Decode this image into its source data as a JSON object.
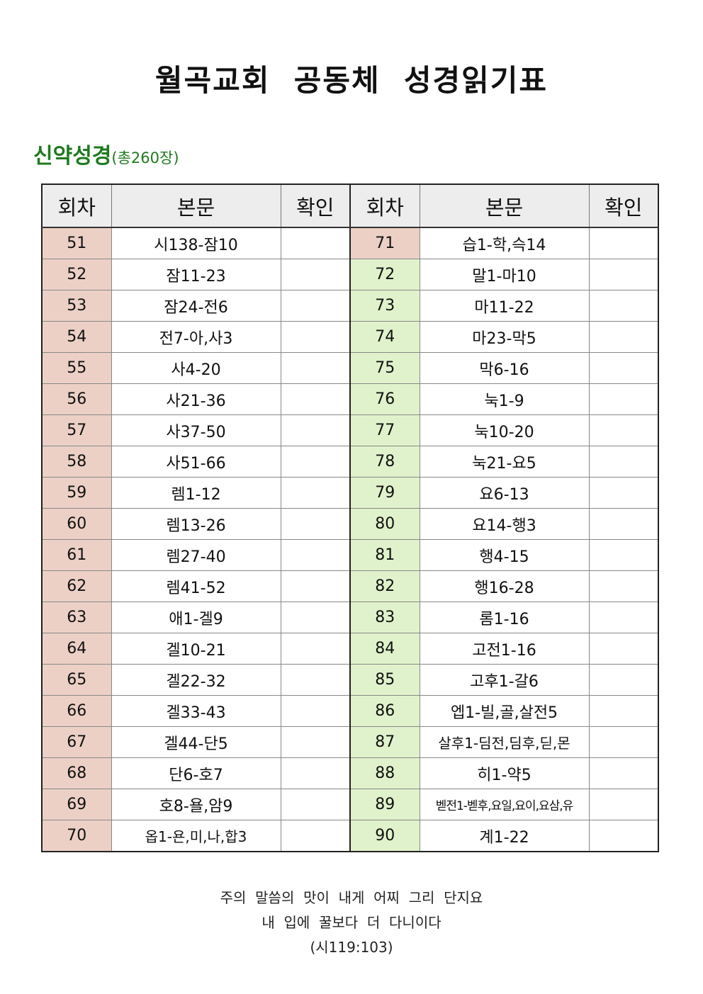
{
  "title": "월곡교회  공동체  성경읽기표",
  "section": {
    "main": "신약성경",
    "sub": "(총260장)"
  },
  "table": {
    "headers": [
      "회차",
      "본문",
      "확인",
      "회차",
      "본문",
      "확인"
    ],
    "rows": [
      {
        "n1": "51",
        "t1": "시138-잠10",
        "n2": "71",
        "t2": "습1-학,슥14"
      },
      {
        "n1": "52",
        "t1": "잠11-23",
        "n2": "72",
        "t2": "말1-마10"
      },
      {
        "n1": "53",
        "t1": "잠24-전6",
        "n2": "73",
        "t2": "마11-22"
      },
      {
        "n1": "54",
        "t1": "전7-아,사3",
        "n2": "74",
        "t2": "마23-막5"
      },
      {
        "n1": "55",
        "t1": "사4-20",
        "n2": "75",
        "t2": "막6-16"
      },
      {
        "n1": "56",
        "t1": "사21-36",
        "n2": "76",
        "t2": "눅1-9"
      },
      {
        "n1": "57",
        "t1": "사37-50",
        "n2": "77",
        "t2": "눅10-20"
      },
      {
        "n1": "58",
        "t1": "사51-66",
        "n2": "78",
        "t2": "눅21-요5"
      },
      {
        "n1": "59",
        "t1": "렘1-12",
        "n2": "79",
        "t2": "요6-13"
      },
      {
        "n1": "60",
        "t1": "렘13-26",
        "n2": "80",
        "t2": "요14-행3"
      },
      {
        "n1": "61",
        "t1": "렘27-40",
        "n2": "81",
        "t2": "행4-15"
      },
      {
        "n1": "62",
        "t1": "렘41-52",
        "n2": "82",
        "t2": "행16-28"
      },
      {
        "n1": "63",
        "t1": "애1-겔9",
        "n2": "83",
        "t2": "롬1-16"
      },
      {
        "n1": "64",
        "t1": "겔10-21",
        "n2": "84",
        "t2": "고전1-16"
      },
      {
        "n1": "65",
        "t1": "겔22-32",
        "n2": "85",
        "t2": "고후1-갈6"
      },
      {
        "n1": "66",
        "t1": "겔33-43",
        "n2": "86",
        "t2": "엡1-빌,골,살전5"
      },
      {
        "n1": "67",
        "t1": "겔44-단5",
        "n2": "87",
        "t2": "살후1-딤전,딤후,딛,몬"
      },
      {
        "n1": "68",
        "t1": "단6-호7",
        "n2": "88",
        "t2": "히1-약5"
      },
      {
        "n1": "69",
        "t1": "호8-욜,암9",
        "n2": "89",
        "t2": "벧전1-벧후,요일,요이,요삼,유"
      },
      {
        "n1": "70",
        "t1": "옵1-욘,미,나,합3",
        "n2": "90",
        "t2": "계1-22"
      }
    ]
  },
  "verse": {
    "line1": "주의  말씀의  맛이  내게  어찌  그리  단지요",
    "line2": "내  입에  꿀보다  더  다니이다",
    "ref": "(시119:103)"
  },
  "colors": {
    "left_number_fill": "#ecd0c6",
    "right_number_fill": "#e0f2cb",
    "header_fill": "#ededed",
    "section_title": "#1e7a1e"
  }
}
